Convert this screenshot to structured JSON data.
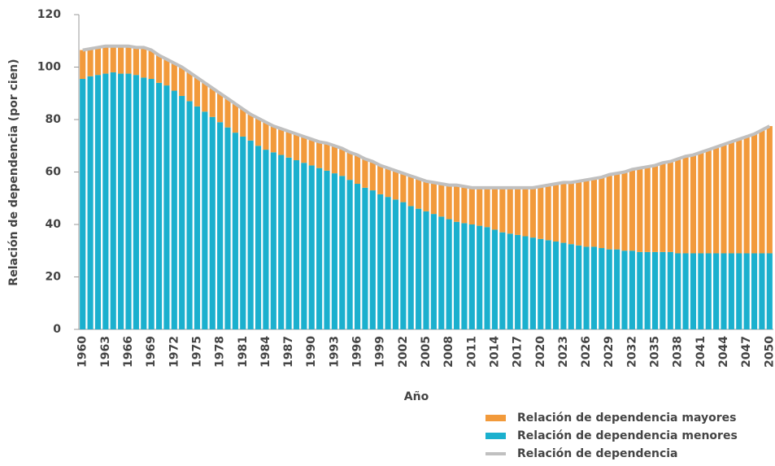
{
  "chart_data": {
    "type": "stacked_bar_line",
    "x_label": "Año",
    "y_label": "Relación de dependencia (por cien)",
    "categories": [
      1960,
      null,
      null,
      1963,
      null,
      null,
      1966,
      null,
      null,
      1969,
      null,
      null,
      1972,
      null,
      null,
      1975,
      null,
      null,
      1978,
      null,
      null,
      1981,
      null,
      null,
      1984,
      null,
      null,
      1987,
      null,
      null,
      1990,
      null,
      null,
      1993,
      null,
      null,
      1996,
      null,
      null,
      1999,
      null,
      null,
      2002,
      null,
      null,
      2005,
      null,
      null,
      2008,
      null,
      null,
      2011,
      null,
      null,
      2014,
      null,
      null,
      2017,
      null,
      null,
      2020,
      null,
      null,
      2023,
      null,
      null,
      2026,
      null,
      null,
      2029,
      null,
      null,
      2032,
      null,
      null,
      2035,
      null,
      null,
      2038,
      null,
      null,
      2041,
      null,
      null,
      2044,
      null,
      null,
      2047,
      null,
      null,
      2050
    ],
    "ylim": [
      0,
      120
    ],
    "yticks": [
      0,
      20,
      40,
      60,
      80,
      100,
      120
    ],
    "series": [
      {
        "name": "Relación de dependencia mayores",
        "color": "#f29a3b",
        "kind": "bar",
        "values": [
          11,
          10.5,
          10.5,
          10.5,
          10,
          10.5,
          10.5,
          10.5,
          11.5,
          11,
          10.5,
          10,
          10.5,
          11,
          11,
          11,
          11,
          11,
          11,
          11,
          11,
          10.5,
          10,
          10.5,
          10.5,
          10,
          10,
          10,
          10,
          10,
          10,
          10,
          10.5,
          10.5,
          10.5,
          10.5,
          11,
          11,
          11,
          11,
          11,
          11,
          11,
          11.5,
          11.5,
          11.5,
          12,
          12.5,
          13,
          14,
          14,
          14,
          14.5,
          15,
          16,
          17,
          17.5,
          18,
          18.5,
          19,
          20,
          21,
          22,
          23,
          23.5,
          24.5,
          25.5,
          26,
          27,
          28.5,
          29,
          30,
          31,
          32,
          32.5,
          33,
          34,
          34.5,
          36,
          37,
          37.5,
          38.5,
          39.5,
          40.5,
          41.5,
          42.5,
          43.5,
          44.5,
          45.5,
          47,
          48.5
        ]
      },
      {
        "name": "Relación de dependencia menores",
        "color": "#1bb0ce",
        "kind": "bar",
        "values": [
          95.5,
          96.5,
          97,
          97.5,
          98,
          97.5,
          97.5,
          97,
          96,
          95.5,
          94,
          93,
          91,
          89,
          87,
          85,
          83,
          81,
          79,
          77,
          75,
          73.5,
          72,
          70,
          68.5,
          67.5,
          66.5,
          65.5,
          64.5,
          63.5,
          62.5,
          61.5,
          60.5,
          59.5,
          58.5,
          57,
          55.5,
          54,
          53,
          51.5,
          50.5,
          49.5,
          48.5,
          47,
          46,
          45,
          44,
          43,
          42,
          41,
          40.5,
          40,
          39.5,
          39,
          38,
          37,
          36.5,
          36,
          35.5,
          35,
          34.5,
          34,
          33.5,
          33,
          32.5,
          32,
          31.5,
          31.5,
          31,
          30.5,
          30.5,
          30,
          30,
          29.5,
          29.5,
          29.5,
          29.5,
          29.5,
          29,
          29,
          29,
          29,
          29,
          29,
          29,
          29,
          29,
          29,
          29,
          29,
          29
        ]
      },
      {
        "name": "Relación de dependencia",
        "color": "#c0c0c0",
        "kind": "line",
        "values": [
          106.5,
          107,
          107.5,
          108,
          108,
          108,
          108,
          107.5,
          107.5,
          106.5,
          104.5,
          103,
          101.5,
          100,
          98,
          96,
          94,
          92,
          90,
          88,
          86,
          84,
          82,
          80.5,
          79,
          77.5,
          76.5,
          75.5,
          74.5,
          73.5,
          72.5,
          71.5,
          71,
          70,
          69,
          67.5,
          66.5,
          65,
          64,
          62.5,
          61.5,
          60.5,
          59.5,
          58.5,
          57.5,
          56.5,
          56,
          55.5,
          55,
          55,
          54.5,
          54,
          54,
          54,
          54,
          54,
          54,
          54,
          54,
          54,
          54.5,
          55,
          55.5,
          56,
          56,
          56.5,
          57,
          57.5,
          58,
          59,
          59.5,
          60,
          61,
          61.5,
          62,
          62.5,
          63.5,
          64,
          65,
          66,
          66.5,
          67.5,
          68.5,
          69.5,
          70.5,
          71.5,
          72.5,
          73.5,
          74.5,
          76,
          77.5
        ]
      }
    ]
  }
}
